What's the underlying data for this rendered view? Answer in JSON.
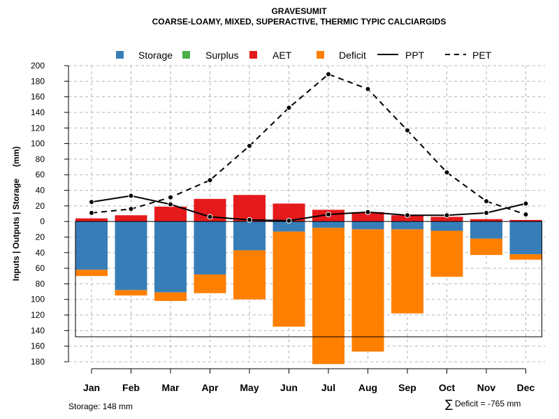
{
  "chart_data": {
    "type": "bar",
    "title": "GRAVESUMIT",
    "subtitle": "COARSE-LOAMY, MIXED, SUPERACTIVE, THERMIC TYPIC CALCIARGIDS",
    "ylabel": "Inputs | Outputs | Storage     (mm)",
    "ylim": [
      -180,
      200
    ],
    "y_ticks": [
      200,
      180,
      160,
      140,
      120,
      100,
      80,
      60,
      40,
      20,
      0,
      -20,
      -40,
      -60,
      -80,
      -100,
      -120,
      -140,
      -160,
      -180
    ],
    "y_tick_labels": [
      "200",
      "180",
      "160",
      "140",
      "120",
      "100",
      "80",
      "60",
      "40",
      "20",
      "0",
      "20",
      "40",
      "60",
      "80",
      "100",
      "120",
      "140",
      "160",
      "180"
    ],
    "categories": [
      "Jan",
      "Feb",
      "Mar",
      "Apr",
      "May",
      "Jun",
      "Jul",
      "Aug",
      "Sep",
      "Oct",
      "Nov",
      "Dec"
    ],
    "storage_capacity": 148,
    "series": [
      {
        "name": "Storage",
        "color": "#377EB8",
        "values": [
          -62,
          -88,
          -91,
          -68,
          -37,
          -13,
          -8,
          -10,
          -10,
          -12,
          -22,
          -42
        ]
      },
      {
        "name": "Surplus",
        "color": "#4DAF4A",
        "values": [
          0,
          0,
          0,
          0,
          0,
          0,
          0,
          0,
          0,
          0,
          0,
          0
        ]
      },
      {
        "name": "AET",
        "color": "#E41A1C",
        "values": [
          4,
          8,
          19,
          29,
          34,
          23,
          15,
          12,
          8,
          6,
          3,
          2
        ]
      },
      {
        "name": "Deficit",
        "color": "#FF7F00",
        "values": [
          -8,
          -7,
          -11,
          -24,
          -63,
          -122,
          -175,
          -157,
          -108,
          -59,
          -21,
          -7
        ]
      },
      {
        "name": "PPT",
        "color": "#000000",
        "style": "solid",
        "values": [
          25,
          33,
          22,
          6,
          2,
          1,
          9,
          12,
          8,
          8,
          11,
          23
        ]
      },
      {
        "name": "PET",
        "color": "#000000",
        "style": "dashed",
        "values": [
          11,
          16,
          31,
          53,
          97,
          146,
          189,
          170,
          117,
          63,
          26,
          9
        ]
      }
    ]
  },
  "legend": {
    "storage": "Storage",
    "surplus": "Surplus",
    "aet": "AET",
    "deficit": "Deficit",
    "ppt": "PPT",
    "pet": "PET"
  },
  "footer": {
    "storage_label": "Storage: 148 mm",
    "deficit_symbol": "∑",
    "deficit_label": "Deficit = -765 mm"
  }
}
